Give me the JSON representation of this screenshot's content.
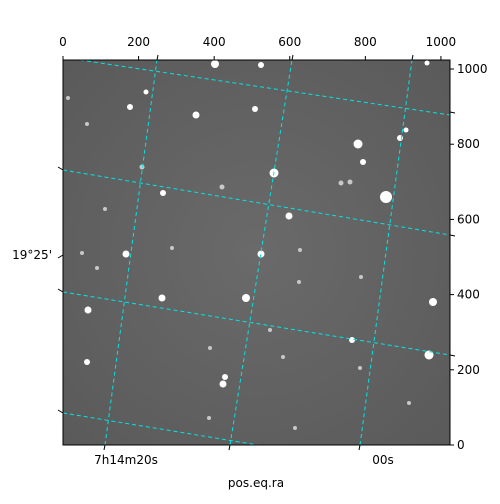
{
  "chart_data": {
    "type": "image",
    "xlabel": "pos.eq.ra",
    "xlim": [
      0,
      1024
    ],
    "xticks": [
      0,
      200,
      400,
      600,
      800,
      1000
    ],
    "ylim": [
      0,
      1024
    ],
    "yticks": [
      0,
      200,
      400,
      600,
      800,
      1000
    ],
    "ra_tick_labels": [
      "7h14m20s",
      "00s"
    ],
    "dec_tick_labels": [
      "19°25'"
    ],
    "grid": true
  }
}
